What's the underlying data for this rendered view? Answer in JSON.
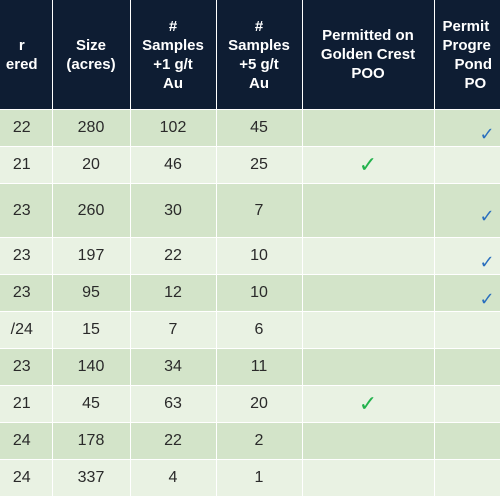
{
  "columns": [
    {
      "lines": [
        "r",
        "ered"
      ]
    },
    {
      "lines": [
        "Size",
        "(acres)"
      ]
    },
    {
      "lines": [
        "#",
        "Samples",
        "+1 g/t",
        "Au"
      ]
    },
    {
      "lines": [
        "#",
        "Samples",
        "+5 g/t",
        "Au"
      ]
    },
    {
      "lines": [
        "Permitted on",
        "Golden Crest",
        "POO"
      ]
    },
    {
      "lines": [
        "Permit",
        "Progre",
        "Pond",
        "PO"
      ]
    }
  ],
  "rows": [
    {
      "c0": "22",
      "size": "280",
      "s1": "102",
      "s5": "45",
      "golden_crest": false,
      "pond": true
    },
    {
      "c0": "21",
      "size": "20",
      "s1": "46",
      "s5": "25",
      "golden_crest": true,
      "pond": false
    },
    {
      "c0": "23",
      "size": "260",
      "s1": "30",
      "s5": "7",
      "golden_crest": false,
      "pond": true
    },
    {
      "c0": "23",
      "size": "197",
      "s1": "22",
      "s5": "10",
      "golden_crest": false,
      "pond": true
    },
    {
      "c0": "23",
      "size": "95",
      "s1": "12",
      "s5": "10",
      "golden_crest": false,
      "pond": true
    },
    {
      "c0": "/24",
      "size": "15",
      "s1": "7",
      "s5": "6",
      "golden_crest": false,
      "pond": false
    },
    {
      "c0": "23",
      "size": "140",
      "s1": "34",
      "s5": "11",
      "golden_crest": false,
      "pond": false
    },
    {
      "c0": "21",
      "size": "45",
      "s1": "63",
      "s5": "20",
      "golden_crest": true,
      "pond": false
    },
    {
      "c0": "24",
      "size": "178",
      "s1": "22",
      "s5": "2",
      "golden_crest": false,
      "pond": false
    },
    {
      "c0": "24",
      "size": "337",
      "s1": "4",
      "s5": "1",
      "golden_crest": false,
      "pond": false
    }
  ],
  "icons": {
    "check": "checkmark-icon",
    "check_glyph": "✓"
  },
  "colors": {
    "header": "#0e1d33",
    "row_dark": "#d3e4c9",
    "row_light": "#e9f2e3",
    "check_green": "#22b24c",
    "check_blue": "#2a6fbe"
  }
}
